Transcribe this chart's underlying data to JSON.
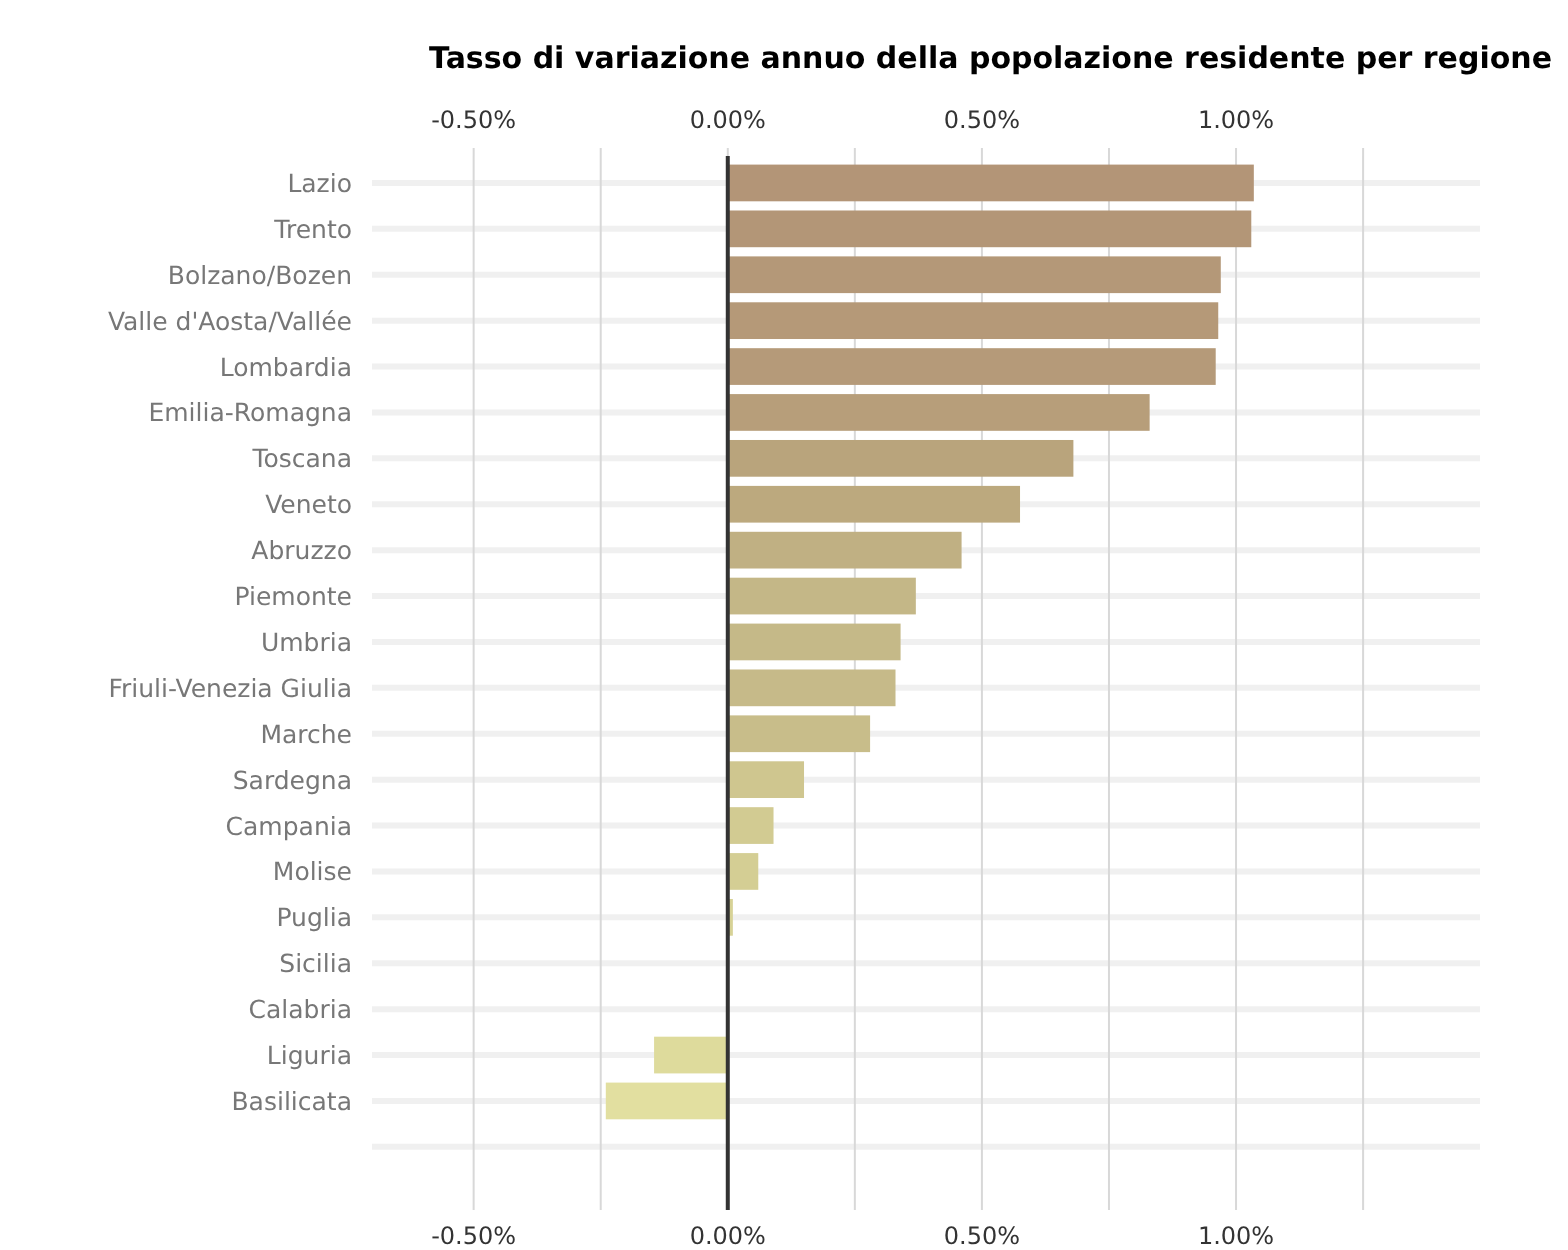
{
  "chart_data": {
    "type": "bar",
    "orientation": "horizontal",
    "title": "Tasso di variazione annuo della popolazione residente per regione",
    "categories": [
      "Lazio",
      "Trento",
      "Bolzano/Bozen",
      "Valle d'Aosta/Vallée",
      "Lombardia",
      "Emilia-Romagna",
      "Toscana",
      "Veneto",
      "Abruzzo",
      "Piemonte",
      "Umbria",
      "Friuli-Venezia Giulia",
      "Marche",
      "Sardegna",
      "Campania",
      "Molise",
      "Puglia",
      "Sicilia",
      "Calabria",
      "Liguria",
      "Basilicata"
    ],
    "values": [
      1.035,
      1.03,
      0.97,
      0.965,
      0.96,
      0.83,
      0.68,
      0.575,
      0.46,
      0.37,
      0.34,
      0.33,
      0.28,
      0.15,
      0.09,
      0.06,
      0.01,
      null,
      null,
      -0.145,
      -0.24
    ],
    "colors": [
      "#b39577",
      "#b39677",
      "#b49878",
      "#b59978",
      "#b59a79",
      "#b79e7a",
      "#b9a47c",
      "#bca97e",
      "#c0b083",
      "#c4b787",
      "#c5b988",
      "#c6ba89",
      "#c8bd8a",
      "#cfc68f",
      "#d2cb92",
      "#d4ce94",
      "#d7d296",
      null,
      null,
      "#dedb9c",
      "#e2dfa0"
    ],
    "xlim": [
      -0.7,
      1.48
    ],
    "xticks": [
      {
        "value": -0.5,
        "label": "-0.50%"
      },
      {
        "value": -0.25,
        "label": null
      },
      {
        "value": 0,
        "label": "0.00%"
      },
      {
        "value": 0.25,
        "label": null
      },
      {
        "value": 0.5,
        "label": "0.50%"
      },
      {
        "value": 0.75,
        "label": null
      },
      {
        "value": 1,
        "label": "1.00%"
      },
      {
        "value": 1.25,
        "label": null
      }
    ],
    "x2lim": [
      -0.7,
      1.48
    ],
    "x2ticks": [
      {
        "value": -0.5,
        "label": "-0.50%"
      },
      {
        "value": -0.25,
        "label": null
      },
      {
        "value": 0,
        "label": "0.00%"
      },
      {
        "value": 0.25,
        "label": null
      },
      {
        "value": 0.5,
        "label": "0.50%"
      },
      {
        "value": 0.75,
        "label": null
      },
      {
        "value": 1,
        "label": "1.00%"
      },
      {
        "value": 1.25,
        "label": null
      }
    ],
    "grid": true
  }
}
